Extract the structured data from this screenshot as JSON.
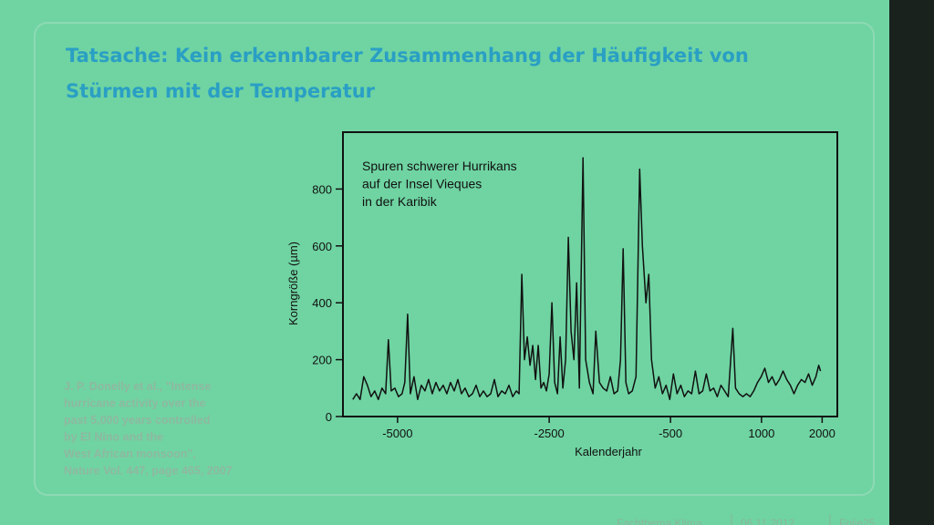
{
  "slide": {
    "title": [
      "Tatsache: Kein erkennbarer Zusammenhang der Häufigkeit von",
      "Stürmen mit der Temperatur"
    ],
    "citation": [
      "J. P. Donelly et al., \"Intense",
      "hurricane activity over the",
      "past 5,000 years controlled",
      "by El Nino and the",
      "West African monsoon\",",
      "Nature Vol. 447, page 465, 2007"
    ],
    "footer": [
      "Fachthema Klima",
      "06.11.2012",
      "Folie25"
    ]
  },
  "chart_data": {
    "type": "line",
    "annotation": [
      "Spuren schwerer Hurrikans",
      "auf der Insel Vieques",
      "in der Karibik"
    ],
    "x_label": "Kalenderjahr",
    "y_label": "Korngröße (µm)",
    "xlim": [
      -5900,
      2250
    ],
    "xticks": [
      -5000,
      -2500,
      -500,
      1000,
      2000
    ],
    "ylim": [
      0,
      1000
    ],
    "yticks": [
      0,
      200,
      400,
      600,
      800
    ],
    "color": "#111111",
    "x": [
      -5738,
      -5678,
      -5617,
      -5557,
      -5497,
      -5437,
      -5377,
      -5316,
      -5256,
      -5196,
      -5151,
      -5105,
      -5045,
      -4985,
      -4925,
      -4880,
      -4834,
      -4789,
      -4729,
      -4669,
      -4608,
      -4548,
      -4488,
      -4428,
      -4367,
      -4307,
      -4247,
      -4187,
      -4127,
      -4066,
      -4006,
      -3946,
      -3886,
      -3825,
      -3765,
      -3705,
      -3645,
      -3584,
      -3524,
      -3464,
      -3404,
      -3343,
      -3283,
      -3223,
      -3163,
      -3102,
      -3042,
      -2997,
      -2952,
      -2907,
      -2861,
      -2816,
      -2771,
      -2726,
      -2681,
      -2636,
      -2590,
      -2545,
      -2500,
      -2455,
      -2410,
      -2364,
      -2319,
      -2274,
      -2229,
      -2184,
      -2139,
      -2093,
      -2048,
      -2003,
      -1943,
      -1898,
      -1837,
      -1777,
      -1732,
      -1672,
      -1611,
      -1551,
      -1491,
      -1431,
      -1371,
      -1325,
      -1280,
      -1235,
      -1190,
      -1130,
      -1069,
      -1009,
      -964,
      -904,
      -858,
      -813,
      -753,
      -693,
      -633,
      -572,
      -512,
      -452,
      -392,
      -331,
      -271,
      -211,
      -151,
      -90,
      -30,
      30,
      90,
      151,
      211,
      271,
      331,
      391,
      452,
      527,
      572,
      632,
      693,
      753,
      813,
      873,
      934,
      994,
      1054,
      1114,
      1175,
      1235,
      1295,
      1355,
      1416,
      1476,
      1536,
      1596,
      1657,
      1717,
      1777,
      1837,
      1897,
      1943,
      1973
    ],
    "values": [
      60,
      80,
      60,
      140,
      110,
      70,
      90,
      60,
      100,
      80,
      270,
      90,
      100,
      70,
      80,
      120,
      360,
      80,
      140,
      60,
      110,
      90,
      130,
      80,
      120,
      90,
      110,
      80,
      120,
      90,
      130,
      80,
      100,
      70,
      80,
      110,
      70,
      90,
      70,
      80,
      130,
      70,
      90,
      80,
      110,
      70,
      90,
      80,
      500,
      200,
      280,
      180,
      250,
      130,
      250,
      100,
      120,
      90,
      150,
      400,
      120,
      80,
      280,
      100,
      200,
      630,
      300,
      200,
      470,
      100,
      910,
      200,
      120,
      80,
      300,
      120,
      100,
      90,
      140,
      80,
      90,
      200,
      590,
      120,
      80,
      90,
      140,
      870,
      600,
      400,
      500,
      200,
      100,
      140,
      80,
      110,
      60,
      150,
      80,
      110,
      70,
      90,
      80,
      160,
      80,
      90,
      150,
      90,
      100,
      70,
      110,
      90,
      70,
      310,
      100,
      80,
      70,
      80,
      70,
      90,
      120,
      140,
      170,
      120,
      140,
      110,
      130,
      160,
      130,
      110,
      80,
      110,
      130,
      120,
      150,
      110,
      140,
      180,
      160
    ]
  }
}
